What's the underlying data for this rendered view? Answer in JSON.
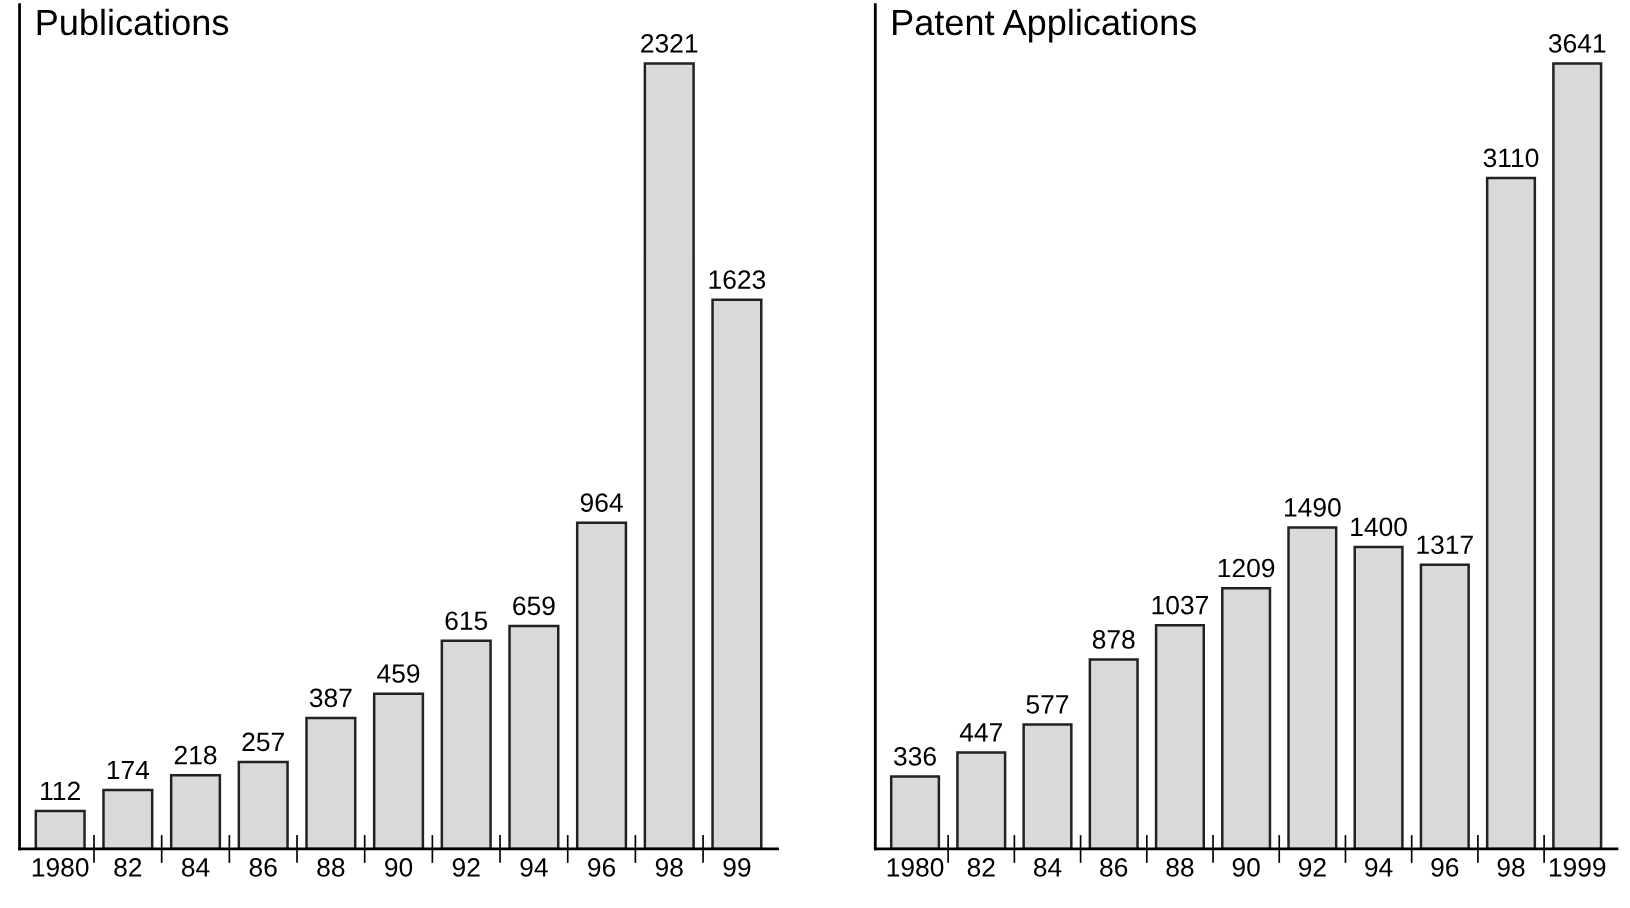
{
  "chart_data": [
    {
      "type": "bar",
      "title": "Publications",
      "categories": [
        "1980",
        "82",
        "84",
        "86",
        "88",
        "90",
        "92",
        "94",
        "96",
        "98",
        "99"
      ],
      "values": [
        112,
        174,
        218,
        257,
        387,
        459,
        615,
        659,
        964,
        2321,
        1623
      ],
      "color": "#d9d9d9",
      "data_labels": true,
      "grid": false,
      "legend": false
    },
    {
      "type": "bar",
      "title": "Patent Applications",
      "categories": [
        "1980",
        "82",
        "84",
        "86",
        "88",
        "90",
        "92",
        "94",
        "96",
        "98",
        "1999"
      ],
      "values": [
        336,
        447,
        577,
        878,
        1037,
        1209,
        1490,
        1400,
        1317,
        3110,
        3641
      ],
      "color": "#d9d9d9",
      "data_labels": true,
      "grid": false,
      "legend": false
    }
  ]
}
